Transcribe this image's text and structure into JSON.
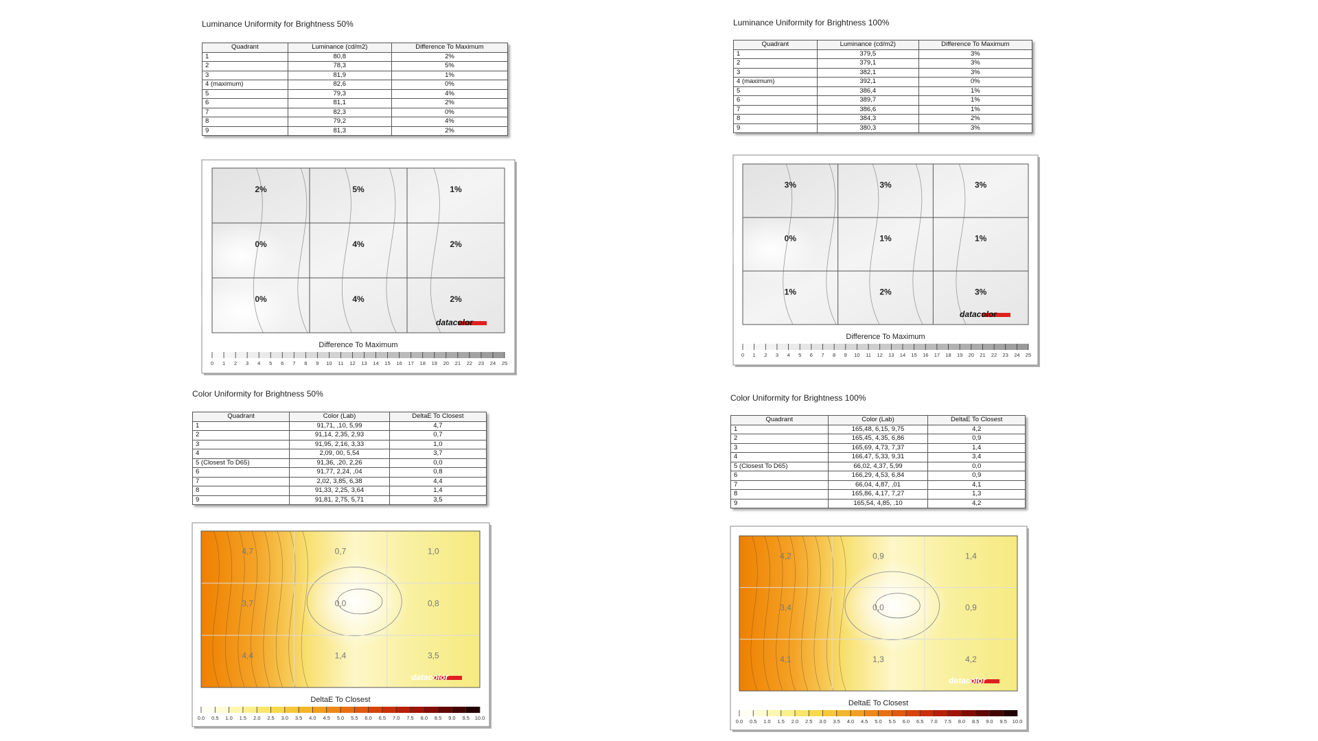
{
  "sections": [
    {
      "title": "Luminance Uniformity for Brightness 50%",
      "table": {
        "header": [
          "Quadrant",
          "Luminance (cd/m2)",
          "Difference To Maximum"
        ],
        "rows": [
          [
            "1",
            "80,8",
            "2%"
          ],
          [
            "2",
            "78,3",
            "5%"
          ],
          [
            "3",
            "81,9",
            "1%"
          ],
          [
            "4 (maximum)",
            "82,6",
            "0%"
          ],
          [
            "5",
            "79,3",
            "4%"
          ],
          [
            "6",
            "81,1",
            "2%"
          ],
          [
            "7",
            "82,3",
            "0%"
          ],
          [
            "8",
            "79,2",
            "4%"
          ],
          [
            "9",
            "81,3",
            "2%"
          ]
        ]
      },
      "map": {
        "cells": [
          "2%",
          "5%",
          "1%",
          "0%",
          "4%",
          "2%",
          "0%",
          "4%",
          "2%"
        ],
        "logo": "datacolor",
        "legend_title": "Difference To Maximum",
        "scale": [
          "0",
          "1",
          "2",
          "3",
          "4",
          "5",
          "6",
          "7",
          "8",
          "9",
          "10",
          "11",
          "12",
          "13",
          "14",
          "15",
          "16",
          "17",
          "18",
          "19",
          "20",
          "21",
          "22",
          "23",
          "24",
          "25"
        ]
      }
    },
    {
      "title": "Luminance Uniformity for Brightness 100%",
      "table": {
        "header": [
          "Quadrant",
          "Luminance (cd/m2)",
          "Difference To Maximum"
        ],
        "rows": [
          [
            "1",
            "379,5",
            "3%"
          ],
          [
            "2",
            "379,1",
            "3%"
          ],
          [
            "3",
            "382,1",
            "3%"
          ],
          [
            "4 (maximum)",
            "392,1",
            "0%"
          ],
          [
            "5",
            "386,4",
            "1%"
          ],
          [
            "6",
            "389,7",
            "1%"
          ],
          [
            "7",
            "386,6",
            "1%"
          ],
          [
            "8",
            "384,3",
            "2%"
          ],
          [
            "9",
            "380,3",
            "3%"
          ]
        ]
      },
      "map": {
        "cells": [
          "3%",
          "3%",
          "3%",
          "0%",
          "1%",
          "1%",
          "1%",
          "2%",
          "3%"
        ],
        "logo": "datacolor",
        "legend_title": "Difference To Maximum",
        "scale": [
          "0",
          "1",
          "2",
          "3",
          "4",
          "5",
          "6",
          "7",
          "8",
          "9",
          "10",
          "11",
          "12",
          "13",
          "14",
          "15",
          "16",
          "17",
          "18",
          "19",
          "20",
          "21",
          "22",
          "23",
          "24",
          "25"
        ]
      }
    },
    {
      "title": "Color Uniformity for Brightness 50%",
      "table": {
        "header": [
          "Quadrant",
          "Color (Lab)",
          "DeltaE To Closest"
        ],
        "rows": [
          [
            "1",
            "91,71, ,10, 5,99",
            "4,7"
          ],
          [
            "2",
            "91,14, 2,35, 2,93",
            "0,7"
          ],
          [
            "3",
            "91,95, 2,16, 3,33",
            "1,0"
          ],
          [
            "4",
            "2,09, 00, 5,54",
            "3,7"
          ],
          [
            "5 (Closest To D65)",
            "91,36, ,20, 2,26",
            "0,0"
          ],
          [
            "6",
            "91,77, 2,24, ,04",
            "0,8"
          ],
          [
            "7",
            "2,02, 3,85, 6,38",
            "4,4"
          ],
          [
            "8",
            "91,33, 2,25, 3,64",
            "1,4"
          ],
          [
            "9",
            "91,81, 2,75, 5,71",
            "3,5"
          ]
        ]
      },
      "map": {
        "cells": [
          "4,7",
          "0,7",
          "1,0",
          "3,7",
          "0,0",
          "0,8",
          "4,4",
          "1,4",
          "3,5"
        ],
        "logo": "datacolor",
        "legend_title": "DeltaE To Closest",
        "scale": [
          "0.0",
          "0.5",
          "1.0",
          "1.5",
          "2.0",
          "2.5",
          "3.0",
          "3.5",
          "4.0",
          "4.5",
          "5.0",
          "5.5",
          "6.0",
          "6.5",
          "7.0",
          "7.5",
          "8.0",
          "8.5",
          "9.0",
          "9.5",
          "10.0"
        ]
      }
    },
    {
      "title": "Color Uniformity for Brightness 100%",
      "table": {
        "header": [
          "Quadrant",
          "Color (Lab)",
          "DeltaE To Closest"
        ],
        "rows": [
          [
            "1",
            "165,48, 6,15, 9,75",
            "4,2"
          ],
          [
            "2",
            "165,45, 4,35, 6,86",
            "0,9"
          ],
          [
            "3",
            "165,69, 4,73, 7,37",
            "1,4"
          ],
          [
            "4",
            "166,47, 5,33, 9,31",
            "3,4"
          ],
          [
            "5 (Closest To D65)",
            "66,02, 4,37, 5,99",
            "0,0"
          ],
          [
            "6",
            "166,29, 4,53, 6,84",
            "0,9"
          ],
          [
            "7",
            "66,04, 4,87, ,01",
            "4,1"
          ],
          [
            "8",
            "165,86, 4,17, 7,27",
            "1,3"
          ],
          [
            "9",
            "165,54, 4,85, ,10",
            "4,2"
          ]
        ]
      },
      "map": {
        "cells": [
          "4,2",
          "0,9",
          "1,4",
          "3,4",
          "0,0",
          "0,9",
          "4,1",
          "1,3",
          "4,2"
        ],
        "logo": "datacolor",
        "legend_title": "DeltaE To Closest",
        "scale": [
          "0.0",
          "0.5",
          "1.0",
          "1.5",
          "2.0",
          "2.5",
          "3.0",
          "3.5",
          "4.0",
          "4.5",
          "5.0",
          "5.5",
          "6.0",
          "6.5",
          "7.0",
          "7.5",
          "8.0",
          "8.5",
          "9.0",
          "9.5",
          "10.0"
        ]
      }
    }
  ]
}
